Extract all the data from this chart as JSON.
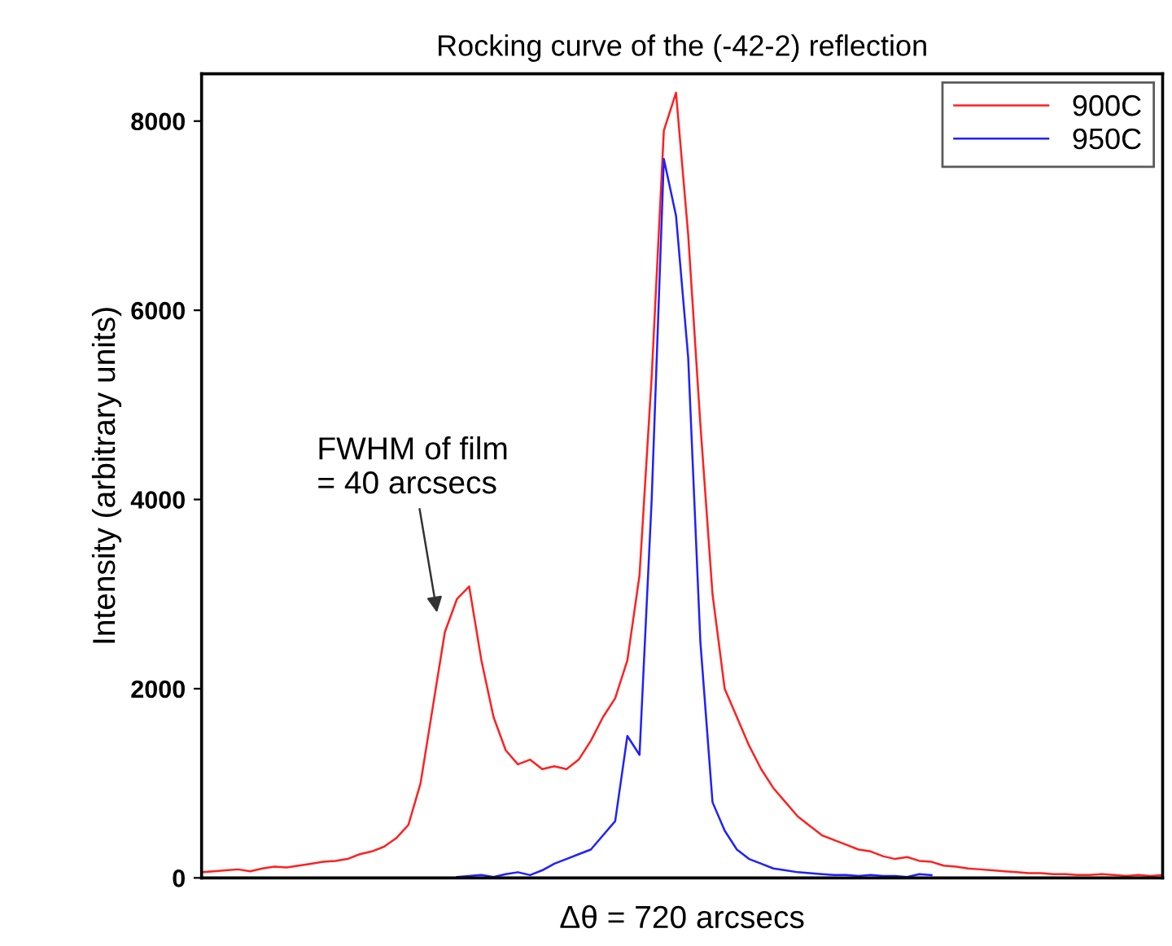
{
  "chart_data": {
    "type": "line",
    "title": "Rocking curve of the (-42-2) reflection",
    "xlabel": "Δθ = 720 arcsecs",
    "ylabel": "Intensity (arbitrary units)",
    "categories": [
      null,
      null,
      null,
      null,
      null,
      null,
      null,
      null,
      null,
      null,
      null,
      null,
      null,
      null,
      null,
      null,
      null,
      null,
      null,
      null,
      null,
      null,
      null,
      null,
      null,
      null,
      null,
      null,
      null,
      null,
      null,
      null,
      null,
      null,
      null,
      null,
      null,
      null,
      null,
      null,
      null,
      null,
      null,
      null,
      null,
      null,
      null,
      null,
      null,
      null,
      null,
      null,
      null,
      null,
      null,
      null,
      null,
      null,
      null,
      null,
      null,
      null,
      null,
      null,
      null,
      null,
      null,
      null,
      null,
      null,
      null,
      null,
      null,
      null,
      null,
      null,
      null,
      null,
      null,
      null
    ],
    "series": [
      {
        "name": "900C",
        "color": "#ff2020",
        "values": [
          60,
          70,
          80,
          90,
          70,
          100,
          120,
          110,
          130,
          150,
          170,
          180,
          200,
          250,
          280,
          330,
          420,
          560,
          1000,
          1800,
          2600,
          2950,
          3080,
          2300,
          1700,
          1350,
          1200,
          1250,
          1150,
          1180,
          1150,
          1250,
          1450,
          1700,
          1900,
          2300,
          3200,
          5300,
          7900,
          8300,
          6800,
          4800,
          3000,
          2000,
          1700,
          1400,
          1150,
          950,
          800,
          650,
          550,
          450,
          400,
          350,
          300,
          280,
          230,
          200,
          220,
          180,
          170,
          130,
          120,
          100,
          90,
          80,
          70,
          60,
          50,
          50,
          40,
          40,
          30,
          30,
          40,
          30,
          20,
          30,
          20,
          30
        ]
      },
      {
        "name": "950C",
        "color": "#2020ff",
        "values": [
          null,
          null,
          null,
          null,
          null,
          null,
          null,
          null,
          null,
          null,
          null,
          null,
          null,
          null,
          null,
          null,
          null,
          null,
          null,
          null,
          null,
          10,
          20,
          30,
          10,
          40,
          60,
          30,
          80,
          150,
          200,
          250,
          300,
          450,
          600,
          1500,
          1300,
          4000,
          7600,
          7000,
          5500,
          2500,
          800,
          500,
          300,
          200,
          150,
          100,
          80,
          60,
          50,
          40,
          30,
          30,
          20,
          30,
          20,
          20,
          10,
          40,
          30,
          null,
          null,
          null,
          null,
          null,
          null,
          null,
          null,
          null,
          null,
          null,
          null,
          null,
          null,
          null,
          null,
          null,
          null,
          null
        ]
      }
    ],
    "ylim": [
      0,
      8500
    ],
    "yticks": [
      0,
      2000,
      4000,
      6000,
      8000
    ],
    "tick_labels": "y",
    "grid": false,
    "legend": "top right",
    "marker": "none",
    "line_style": "solid",
    "annotations": [
      "FWHM of film\n= 40 arcsecs"
    ]
  }
}
